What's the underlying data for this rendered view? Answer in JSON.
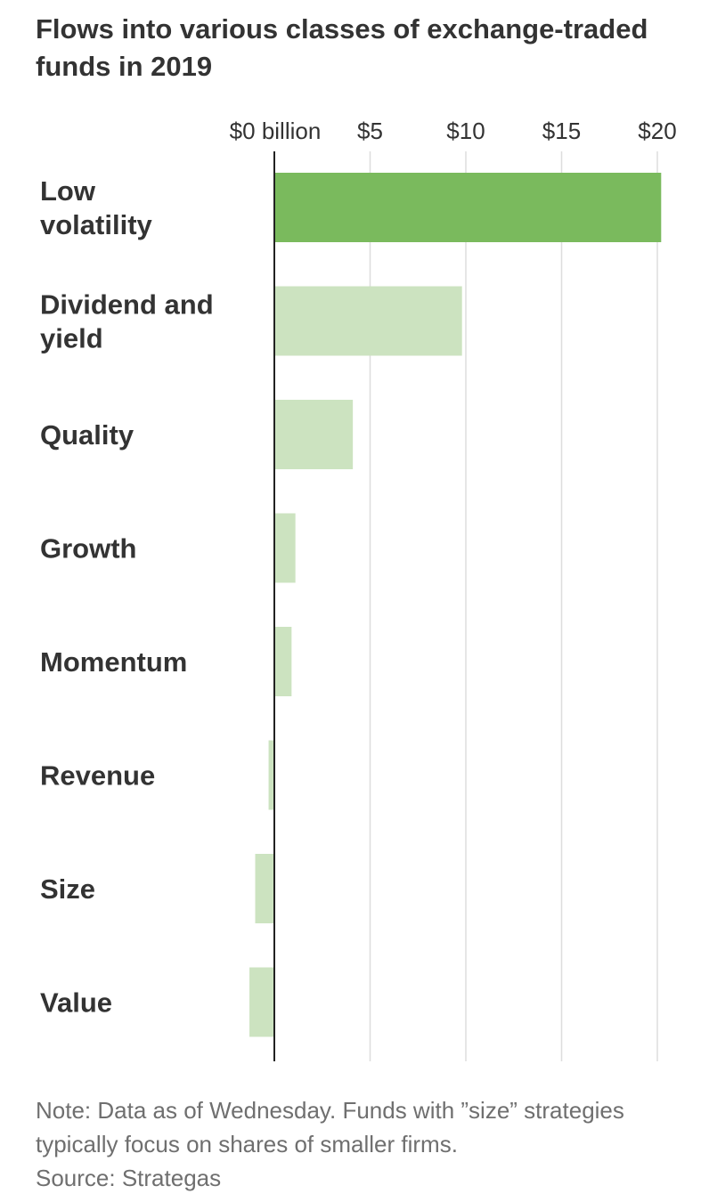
{
  "chart_data": {
    "type": "bar",
    "orientation": "horizontal",
    "title": "Flows into various classes of exchange-traded funds in 2019",
    "categories": [
      "Low volatility",
      "Dividend and yield",
      "Quality",
      "Growth",
      "Momentum",
      "Revenue",
      "Size",
      "Value"
    ],
    "category_lines": [
      [
        "Low",
        "volatility"
      ],
      [
        "Dividend and",
        "yield"
      ],
      [
        "Quality"
      ],
      [
        "Growth"
      ],
      [
        "Momentum"
      ],
      [
        "Revenue"
      ],
      [
        "Size"
      ],
      [
        "Value"
      ]
    ],
    "values": [
      20.2,
      9.8,
      4.1,
      1.1,
      0.9,
      -0.3,
      -1.0,
      -1.3
    ],
    "xlim": [
      -1.5,
      20.2
    ],
    "ticks": [
      0,
      5,
      10,
      15,
      20
    ],
    "tick_labels": [
      "$0 billion",
      "$5",
      "$10",
      "$15",
      "$20"
    ],
    "unit": "billion dollars",
    "grid": true,
    "colors": {
      "highlight": "#7aba5d",
      "bar": "#cce3c0",
      "grid": "#dddddd",
      "axis": "#222222"
    }
  },
  "footer": {
    "note": "Note: Data as of Wednesday. Funds with ”size” strategies typically focus on shares of smaller firms.",
    "source": "Source: Strategas"
  }
}
